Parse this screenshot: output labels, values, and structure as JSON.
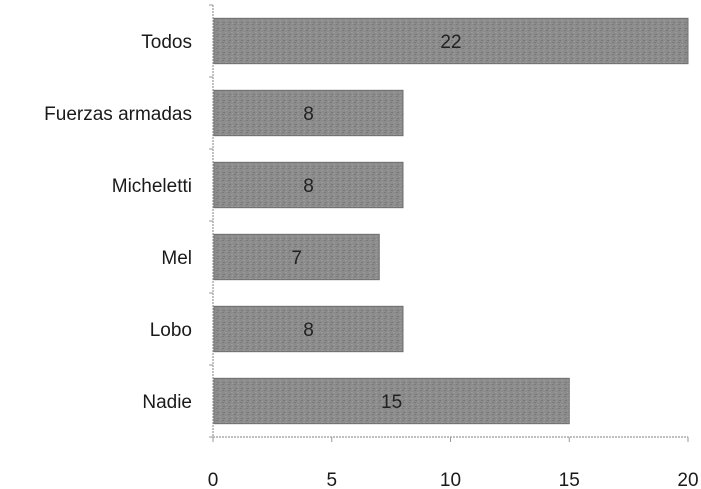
{
  "chart_data": {
    "type": "bar",
    "orientation": "horizontal",
    "categories": [
      "Todos",
      "Fuerzas armadas",
      "Micheletti",
      "Mel",
      "Lobo",
      "Nadie"
    ],
    "values": [
      22,
      8,
      8,
      7,
      8,
      15
    ],
    "data_labels": [
      "22",
      "8",
      "8",
      "7",
      "8",
      "15"
    ],
    "xlim": [
      0,
      20
    ],
    "xticks": [
      "0",
      "5",
      "10",
      "15",
      "20"
    ],
    "grid": false,
    "legend": "none",
    "bar_color": "#8a8a8a",
    "title": "",
    "xlabel": "",
    "ylabel": ""
  }
}
